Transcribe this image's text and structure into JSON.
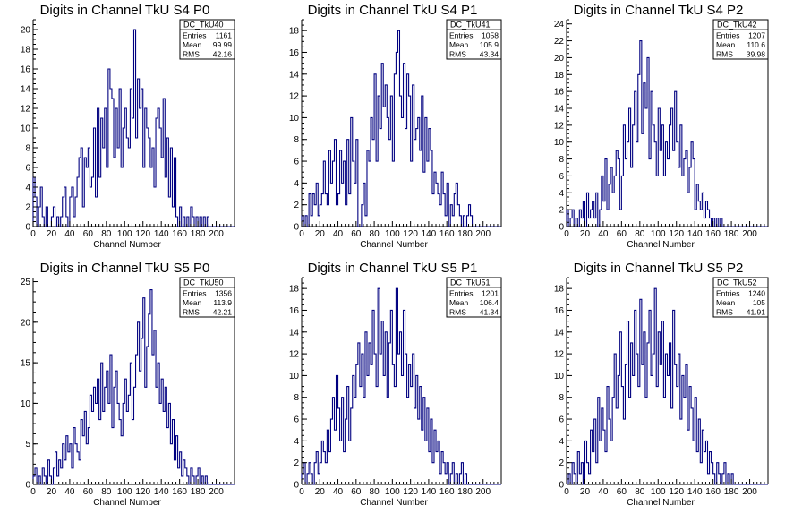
{
  "chart_data": [
    {
      "type": "bar",
      "title": "Digits in Channel TkU S4 P0",
      "xlabel": "Channel Number",
      "ylabel": "",
      "xlim": [
        0,
        220
      ],
      "ylim": [
        0,
        21
      ],
      "xticks": [
        0,
        20,
        40,
        60,
        80,
        100,
        120,
        140,
        160,
        180,
        200
      ],
      "yticks": [
        0,
        2,
        4,
        6,
        8,
        10,
        12,
        14,
        16,
        18,
        20
      ],
      "stats": {
        "name": "DC_TkU40",
        "entries": "1161",
        "mean": "99.99",
        "rms": "42.16"
      },
      "bin_width": 2,
      "values": [
        5,
        3,
        0,
        2,
        4,
        1,
        0,
        2,
        0,
        0,
        1,
        2,
        0,
        1,
        0,
        1,
        3,
        4,
        1,
        0,
        3,
        4,
        1,
        3,
        5,
        7,
        8,
        2,
        7,
        6,
        8,
        4,
        5,
        10,
        3,
        12,
        5,
        11,
        8,
        12,
        6,
        16,
        14,
        13,
        7,
        12,
        8,
        14,
        6,
        10,
        12,
        9,
        8,
        14,
        11,
        20,
        9,
        15,
        12,
        14,
        6,
        12,
        10,
        9,
        6,
        8,
        4,
        11,
        12,
        10,
        7,
        13,
        5,
        9,
        3,
        8,
        2,
        7,
        1,
        0,
        2,
        0,
        1,
        0,
        1,
        0,
        2,
        1,
        0,
        1,
        0,
        1,
        0,
        1,
        0,
        1,
        0,
        0,
        0,
        0,
        0,
        0,
        0,
        0,
        0,
        0,
        0,
        0,
        0,
        0
      ]
    },
    {
      "type": "bar",
      "title": "Digits in Channel TkU S4 P1",
      "xlabel": "Channel Number",
      "ylabel": "",
      "xlim": [
        0,
        220
      ],
      "ylim": [
        0,
        19
      ],
      "xticks": [
        0,
        20,
        40,
        60,
        80,
        100,
        120,
        140,
        160,
        180,
        200
      ],
      "yticks": [
        0,
        2,
        4,
        6,
        8,
        10,
        12,
        14,
        16,
        18
      ],
      "stats": {
        "name": "DC_TkU41",
        "entries": "1058",
        "mean": "105.9",
        "rms": "43.34"
      },
      "bin_width": 2,
      "values": [
        1,
        0,
        1,
        0,
        3,
        1,
        3,
        2,
        4,
        1,
        2,
        3,
        6,
        3,
        2,
        7,
        4,
        6,
        8,
        2,
        3,
        7,
        4,
        6,
        2,
        8,
        3,
        10,
        6,
        4,
        8,
        0,
        0,
        2,
        4,
        1,
        7,
        6,
        10,
        8,
        14,
        6,
        12,
        9,
        15,
        11,
        13,
        10,
        8,
        12,
        6,
        14,
        16,
        18,
        12,
        10,
        15,
        9,
        14,
        12,
        6,
        13,
        8,
        9,
        10,
        7,
        12,
        5,
        10,
        6,
        9,
        7,
        3,
        5,
        4,
        3,
        2,
        5,
        3,
        1,
        4,
        0,
        2,
        1,
        3,
        4,
        2,
        1,
        0,
        1,
        0,
        1,
        2,
        1,
        0,
        0,
        0,
        0,
        0,
        0,
        0,
        0,
        0,
        0,
        0,
        0,
        0,
        0,
        0,
        0
      ]
    },
    {
      "type": "bar",
      "title": "Digits in Channel TkU S4 P2",
      "xlabel": "Channel Number",
      "ylabel": "",
      "xlim": [
        0,
        220
      ],
      "ylim": [
        0,
        24.5
      ],
      "xticks": [
        0,
        20,
        40,
        60,
        80,
        100,
        120,
        140,
        160,
        180,
        200
      ],
      "yticks": [
        0,
        2,
        4,
        6,
        8,
        10,
        12,
        14,
        16,
        18,
        20,
        22,
        24
      ],
      "stats": {
        "name": "DC_TkU42",
        "entries": "1207",
        "mean": "110.6",
        "rms": "39.98"
      },
      "bin_width": 2,
      "values": [
        2,
        0,
        1,
        2,
        0,
        1,
        0,
        2,
        1,
        3,
        0,
        4,
        1,
        2,
        3,
        1,
        4,
        0,
        2,
        6,
        3,
        8,
        2,
        5,
        7,
        4,
        6,
        9,
        8,
        2,
        6,
        12,
        8,
        10,
        14,
        7,
        12,
        16,
        10,
        18,
        22,
        11,
        17,
        14,
        20,
        8,
        16,
        12,
        10,
        6,
        14,
        9,
        12,
        6,
        10,
        8,
        12,
        14,
        9,
        16,
        10,
        7,
        12,
        6,
        8,
        9,
        4,
        7,
        10,
        8,
        2,
        5,
        3,
        2,
        4,
        1,
        3,
        2,
        1,
        0,
        1,
        0,
        1,
        0,
        1,
        0,
        0,
        0,
        0,
        0,
        0,
        0,
        0,
        0,
        0,
        0,
        0,
        0,
        0,
        0,
        0,
        0,
        0,
        0,
        0,
        0,
        0,
        0,
        0,
        0
      ]
    },
    {
      "type": "bar",
      "title": "Digits in Channel TkU S5 P0",
      "xlabel": "Channel Number",
      "ylabel": "",
      "xlim": [
        0,
        220
      ],
      "ylim": [
        0,
        25.5
      ],
      "xticks": [
        0,
        20,
        40,
        60,
        80,
        100,
        120,
        140,
        160,
        180,
        200
      ],
      "yticks": [
        0,
        5,
        10,
        15,
        20,
        25
      ],
      "stats": {
        "name": "DC_TkU50",
        "entries": "1356",
        "mean": "113.9",
        "rms": "42.21"
      },
      "bin_width": 2,
      "values": [
        1,
        2,
        0,
        1,
        0,
        2,
        1,
        0,
        3,
        1,
        0,
        2,
        4,
        1,
        3,
        2,
        5,
        3,
        6,
        4,
        5,
        2,
        7,
        5,
        4,
        3,
        8,
        6,
        9,
        5,
        7,
        11,
        9,
        12,
        10,
        13,
        8,
        15,
        9,
        12,
        14,
        10,
        16,
        7,
        12,
        14,
        10,
        8,
        6,
        10,
        13,
        9,
        11,
        15,
        8,
        12,
        16,
        20,
        14,
        18,
        23,
        12,
        17,
        21,
        24,
        16,
        19,
        12,
        15,
        10,
        13,
        9,
        12,
        7,
        10,
        5,
        8,
        3,
        6,
        2,
        4,
        1,
        3,
        2,
        1,
        0,
        2,
        1,
        0,
        1,
        2,
        0,
        1,
        0,
        1,
        0,
        0,
        0,
        0,
        0,
        0,
        0,
        0,
        0,
        0,
        0,
        0,
        0,
        0,
        0
      ]
    },
    {
      "type": "bar",
      "title": "Digits in Channel TkU S5 P1",
      "xlabel": "Channel Number",
      "ylabel": "",
      "xlim": [
        0,
        220
      ],
      "ylim": [
        0,
        19
      ],
      "xticks": [
        0,
        20,
        40,
        60,
        80,
        100,
        120,
        140,
        160,
        180,
        200
      ],
      "yticks": [
        0,
        2,
        4,
        6,
        8,
        10,
        12,
        14,
        16,
        18
      ],
      "stats": {
        "name": "DC_TkU51",
        "entries": "1201",
        "mean": "106.4",
        "rms": "41.34"
      },
      "bin_width": 2,
      "values": [
        1,
        2,
        0,
        1,
        2,
        1,
        0,
        2,
        3,
        1,
        2,
        4,
        3,
        2,
        5,
        3,
        6,
        8,
        5,
        10,
        7,
        4,
        8,
        3,
        6,
        9,
        4,
        7,
        10,
        8,
        11,
        13,
        9,
        12,
        8,
        14,
        10,
        13,
        11,
        16,
        12,
        9,
        18,
        12,
        15,
        10,
        14,
        8,
        13,
        16,
        11,
        9,
        18,
        12,
        14,
        10,
        16,
        12,
        8,
        11,
        9,
        12,
        7,
        10,
        6,
        9,
        5,
        8,
        4,
        7,
        3,
        6,
        2,
        5,
        3,
        4,
        1,
        3,
        2,
        1,
        2,
        0,
        1,
        2,
        0,
        1,
        0,
        1,
        2,
        0,
        1,
        0,
        0,
        0,
        0,
        0,
        0,
        0,
        0,
        0,
        0,
        0,
        0,
        0,
        0,
        0,
        0,
        0,
        0,
        0
      ]
    },
    {
      "type": "bar",
      "title": "Digits in Channel TkU S5 P2",
      "xlabel": "Channel Number",
      "ylabel": "",
      "xlim": [
        0,
        220
      ],
      "ylim": [
        0,
        19
      ],
      "xticks": [
        0,
        20,
        40,
        60,
        80,
        100,
        120,
        140,
        160,
        180,
        200
      ],
      "yticks": [
        0,
        2,
        4,
        6,
        8,
        10,
        12,
        14,
        16,
        18
      ],
      "stats": {
        "name": "DC_TkU52",
        "entries": "1240",
        "mean": "105",
        "rms": "41.91"
      },
      "bin_width": 2,
      "values": [
        0,
        1,
        0,
        2,
        1,
        0,
        3,
        1,
        2,
        0,
        4,
        2,
        1,
        5,
        3,
        6,
        2,
        8,
        4,
        7,
        5,
        3,
        9,
        6,
        4,
        8,
        12,
        7,
        10,
        14,
        9,
        6,
        11,
        15,
        8,
        13,
        10,
        16,
        12,
        9,
        17,
        11,
        14,
        8,
        13,
        16,
        10,
        12,
        18,
        9,
        14,
        11,
        15,
        8,
        12,
        10,
        13,
        7,
        16,
        11,
        9,
        12,
        6,
        10,
        8,
        11,
        5,
        9,
        7,
        4,
        8,
        3,
        6,
        2,
        5,
        3,
        4,
        1,
        3,
        2,
        1,
        0,
        2,
        1,
        0,
        1,
        2,
        0,
        1,
        0,
        1,
        0,
        0,
        0,
        0,
        0,
        0,
        0,
        0,
        0,
        0,
        0,
        0,
        0,
        0,
        0,
        0,
        0,
        0,
        0
      ]
    }
  ],
  "labels": {
    "entries": "Entries",
    "mean": "Mean",
    "rms": "RMS"
  },
  "colors": {
    "hist": "#000080",
    "axis": "#000000",
    "background": "#ffffff"
  }
}
